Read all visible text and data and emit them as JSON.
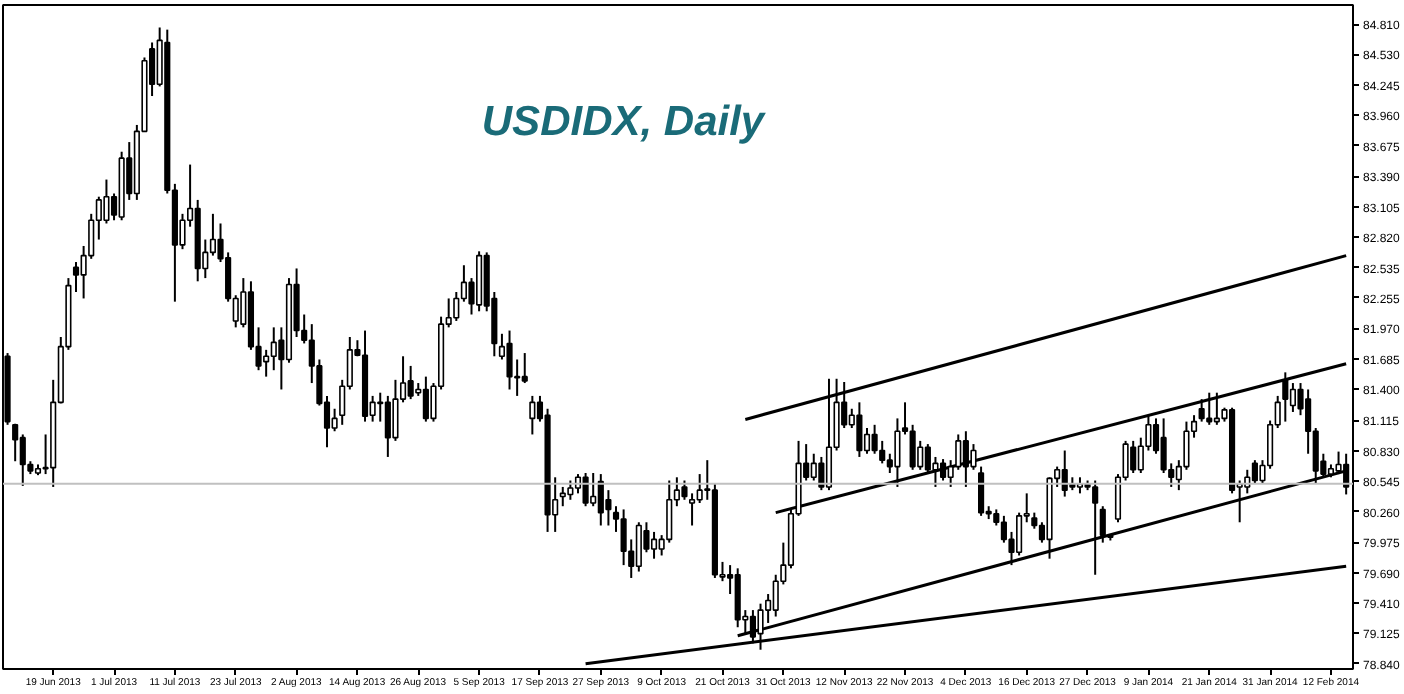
{
  "chart_data": {
    "type": "candlestick",
    "title": "USDIDX, Daily",
    "categories": [
      null,
      null,
      null,
      null,
      null,
      null,
      "19 Jun 2013",
      null,
      null,
      null,
      null,
      null,
      null,
      null,
      "1 Jul 2013",
      null,
      null,
      null,
      null,
      null,
      null,
      null,
      "11 Jul 2013",
      null,
      null,
      null,
      null,
      null,
      null,
      null,
      "23 Jul 2013",
      null,
      null,
      null,
      null,
      null,
      null,
      null,
      "2 Aug 2013",
      null,
      null,
      null,
      null,
      null,
      null,
      null,
      "14 Aug 2013",
      null,
      null,
      null,
      null,
      null,
      null,
      null,
      "26 Aug 2013",
      null,
      null,
      null,
      null,
      null,
      null,
      null,
      "5 Sep 2013",
      null,
      null,
      null,
      null,
      null,
      null,
      null,
      "17 Sep 2013",
      null,
      null,
      null,
      null,
      null,
      null,
      null,
      "27 Sep 2013",
      null,
      null,
      null,
      null,
      null,
      null,
      null,
      "9 Oct 2013",
      null,
      null,
      null,
      null,
      null,
      null,
      null,
      "21 Oct 2013",
      null,
      null,
      null,
      null,
      null,
      null,
      null,
      "31 Oct 2013",
      null,
      null,
      null,
      null,
      null,
      null,
      null,
      "12 Nov 2013",
      null,
      null,
      null,
      null,
      null,
      null,
      null,
      "22 Nov 2013",
      null,
      null,
      null,
      null,
      null,
      null,
      null,
      "4 Dec 2013",
      null,
      null,
      null,
      null,
      null,
      null,
      null,
      "16 Dec 2013",
      null,
      null,
      null,
      null,
      null,
      null,
      null,
      "27 Dec 2013",
      null,
      null,
      null,
      null,
      null,
      null,
      null,
      "9 Jan 2014",
      null,
      null,
      null,
      null,
      null,
      null,
      null,
      "21 Jan 2014",
      null,
      null,
      null,
      null,
      null,
      null,
      null,
      "31 Jan 2014",
      null,
      null,
      null,
      null,
      null,
      null,
      null,
      "12 Feb 2014",
      null,
      null
    ],
    "ohlc": [
      [
        81.71,
        81.74,
        81.07,
        81.1
      ],
      [
        81.07,
        81.08,
        80.73,
        80.93
      ],
      [
        80.95,
        80.98,
        80.5,
        80.7
      ],
      [
        80.7,
        80.73,
        80.61,
        80.64
      ],
      [
        80.62,
        80.7,
        80.6,
        80.66
      ],
      [
        80.66,
        80.98,
        80.61,
        80.67
      ],
      [
        80.67,
        81.49,
        80.49,
        81.28
      ],
      [
        81.28,
        81.89,
        81.27,
        81.8
      ],
      [
        81.8,
        82.44,
        81.77,
        82.37
      ],
      [
        82.54,
        82.59,
        82.31,
        82.47
      ],
      [
        82.47,
        82.74,
        82.25,
        82.65
      ],
      [
        82.65,
        83.04,
        82.62,
        82.98
      ],
      [
        82.98,
        83.2,
        82.8,
        83.17
      ],
      [
        82.98,
        83.36,
        82.95,
        83.2
      ],
      [
        83.2,
        83.23,
        82.98,
        83.03
      ],
      [
        83.01,
        83.62,
        82.98,
        83.56
      ],
      [
        83.56,
        83.71,
        83.17,
        83.23
      ],
      [
        83.23,
        83.87,
        83.17,
        83.81
      ],
      [
        83.81,
        84.5,
        83.81,
        84.47
      ],
      [
        84.58,
        84.64,
        84.14,
        84.25
      ],
      [
        84.25,
        84.78,
        84.23,
        84.66
      ],
      [
        84.64,
        84.76,
        83.23,
        83.26
      ],
      [
        83.26,
        83.32,
        82.22,
        82.75
      ],
      [
        82.75,
        83.04,
        82.71,
        82.98
      ],
      [
        82.98,
        83.5,
        82.92,
        83.09
      ],
      [
        83.09,
        83.17,
        82.41,
        82.53
      ],
      [
        82.53,
        82.8,
        82.44,
        82.68
      ],
      [
        82.68,
        83.04,
        82.65,
        82.8
      ],
      [
        82.8,
        82.95,
        82.59,
        82.62
      ],
      [
        82.63,
        82.68,
        82.22,
        82.25
      ],
      [
        82.04,
        82.28,
        81.98,
        82.25
      ],
      [
        82.01,
        82.44,
        81.98,
        82.31
      ],
      [
        82.31,
        82.41,
        81.77,
        81.8
      ],
      [
        81.8,
        81.98,
        81.58,
        81.62
      ],
      [
        81.66,
        81.77,
        81.52,
        81.71
      ],
      [
        81.71,
        81.98,
        81.58,
        81.84
      ],
      [
        81.86,
        81.98,
        81.4,
        81.68
      ],
      [
        81.68,
        82.44,
        81.65,
        82.38
      ],
      [
        82.38,
        82.53,
        81.89,
        81.95
      ],
      [
        81.95,
        82.1,
        81.83,
        81.86
      ],
      [
        81.86,
        82.01,
        81.46,
        81.62
      ],
      [
        81.62,
        81.68,
        81.25,
        81.27
      ],
      [
        81.28,
        81.34,
        80.86,
        81.04
      ],
      [
        81.04,
        81.22,
        81.01,
        81.13
      ],
      [
        81.16,
        81.49,
        81.07,
        81.43
      ],
      [
        81.43,
        81.89,
        81.4,
        81.77
      ],
      [
        81.77,
        81.86,
        81.71,
        81.72
      ],
      [
        81.72,
        81.95,
        81.1,
        81.15
      ],
      [
        81.16,
        81.34,
        81.1,
        81.28
      ],
      [
        81.27,
        81.37,
        81.1,
        81.28
      ],
      [
        81.28,
        81.34,
        80.77,
        80.95
      ],
      [
        80.95,
        81.49,
        80.92,
        81.31
      ],
      [
        81.31,
        81.71,
        81.28,
        81.46
      ],
      [
        81.48,
        81.62,
        81.31,
        81.34
      ],
      [
        81.37,
        81.46,
        81.34,
        81.4
      ],
      [
        81.4,
        81.52,
        81.1,
        81.13
      ],
      [
        81.13,
        81.46,
        81.1,
        81.43
      ],
      [
        81.43,
        82.08,
        81.4,
        82.01
      ],
      [
        82.01,
        82.25,
        81.98,
        82.07
      ],
      [
        82.07,
        82.31,
        82.04,
        82.25
      ],
      [
        82.25,
        82.56,
        82.22,
        82.4
      ],
      [
        82.4,
        82.44,
        82.1,
        82.2
      ],
      [
        82.19,
        82.69,
        82.13,
        82.65
      ],
      [
        82.65,
        82.68,
        82.13,
        82.18
      ],
      [
        82.25,
        82.31,
        81.71,
        81.83
      ],
      [
        81.71,
        81.92,
        81.68,
        81.8
      ],
      [
        81.83,
        81.95,
        81.4,
        81.52
      ],
      [
        81.51,
        81.68,
        81.34,
        81.52
      ],
      [
        81.52,
        81.74,
        81.46,
        81.48
      ],
      [
        81.13,
        81.34,
        80.98,
        81.28
      ],
      [
        81.28,
        81.34,
        81.1,
        81.13
      ],
      [
        81.16,
        81.22,
        80.07,
        80.23
      ],
      [
        80.23,
        80.58,
        80.07,
        80.37
      ],
      [
        80.4,
        80.49,
        80.31,
        80.43
      ],
      [
        80.42,
        80.55,
        80.37,
        80.48
      ],
      [
        80.48,
        80.61,
        80.43,
        80.58
      ],
      [
        80.58,
        80.62,
        80.31,
        80.34
      ],
      [
        80.34,
        80.62,
        80.31,
        80.4
      ],
      [
        80.54,
        80.61,
        80.13,
        80.25
      ],
      [
        80.37,
        80.46,
        80.13,
        80.28
      ],
      [
        80.25,
        80.31,
        80.07,
        80.19
      ],
      [
        80.19,
        80.28,
        79.76,
        79.89
      ],
      [
        79.89,
        80.0,
        79.64,
        79.75
      ],
      [
        79.75,
        80.16,
        79.7,
        80.13
      ],
      [
        80.08,
        80.16,
        79.88,
        79.91
      ],
      [
        79.91,
        80.07,
        79.82,
        80.0
      ],
      [
        79.91,
        80.04,
        79.85,
        80.0
      ],
      [
        80.0,
        80.55,
        79.97,
        80.37
      ],
      [
        80.37,
        80.58,
        80.31,
        80.46
      ],
      [
        80.49,
        80.55,
        80.37,
        80.4
      ],
      [
        80.34,
        80.43,
        80.13,
        80.37
      ],
      [
        80.37,
        80.61,
        80.34,
        80.46
      ],
      [
        80.46,
        80.74,
        80.37,
        80.47
      ],
      [
        80.46,
        80.52,
        79.64,
        79.67
      ],
      [
        79.65,
        79.79,
        79.61,
        79.67
      ],
      [
        79.67,
        79.76,
        79.49,
        79.64
      ],
      [
        79.67,
        79.73,
        79.18,
        79.25
      ],
      [
        79.25,
        79.34,
        79.12,
        79.28
      ],
      [
        79.28,
        79.34,
        79.03,
        79.09
      ],
      [
        79.12,
        79.4,
        78.97,
        79.34
      ],
      [
        79.34,
        79.49,
        79.22,
        79.43
      ],
      [
        79.34,
        79.67,
        79.28,
        79.61
      ],
      [
        79.61,
        79.97,
        79.58,
        79.76
      ],
      [
        79.76,
        80.28,
        79.73,
        80.24
      ],
      [
        80.24,
        80.92,
        80.22,
        80.71
      ],
      [
        80.71,
        80.89,
        80.55,
        80.58
      ],
      [
        80.58,
        80.8,
        80.55,
        80.71
      ],
      [
        80.71,
        80.77,
        80.46,
        80.49
      ],
      [
        80.49,
        81.5,
        80.46,
        80.86
      ],
      [
        80.86,
        81.5,
        80.83,
        81.28
      ],
      [
        81.28,
        81.47,
        81.04,
        81.07
      ],
      [
        81.07,
        81.22,
        81.04,
        81.16
      ],
      [
        81.16,
        81.28,
        80.77,
        80.83
      ],
      [
        80.83,
        81.04,
        80.8,
        80.98
      ],
      [
        80.98,
        81.07,
        80.8,
        80.83
      ],
      [
        80.83,
        80.92,
        80.71,
        80.74
      ],
      [
        80.74,
        80.8,
        80.62,
        80.68
      ],
      [
        80.68,
        81.13,
        80.49,
        81.01
      ],
      [
        81.04,
        81.28,
        80.98,
        81.01
      ],
      [
        81.01,
        81.07,
        80.65,
        80.68
      ],
      [
        80.68,
        80.92,
        80.65,
        80.86
      ],
      [
        80.86,
        80.89,
        80.62,
        80.65
      ],
      [
        80.65,
        80.77,
        80.49,
        80.71
      ],
      [
        80.71,
        80.75,
        80.55,
        80.58
      ],
      [
        80.58,
        80.74,
        80.49,
        80.68
      ],
      [
        80.68,
        80.98,
        80.65,
        80.92
      ],
      [
        80.92,
        81.01,
        80.49,
        80.68
      ],
      [
        80.68,
        80.89,
        80.65,
        80.83
      ],
      [
        80.62,
        80.68,
        80.22,
        80.25
      ],
      [
        80.26,
        80.31,
        80.19,
        80.24
      ],
      [
        80.24,
        80.28,
        80.13,
        80.16
      ],
      [
        80.16,
        80.22,
        79.97,
        80.0
      ],
      [
        80.0,
        80.07,
        79.76,
        79.88
      ],
      [
        79.88,
        80.25,
        79.85,
        80.22
      ],
      [
        80.22,
        80.43,
        80.16,
        80.24
      ],
      [
        80.2,
        80.25,
        80.1,
        80.13
      ],
      [
        80.13,
        80.16,
        79.97,
        80.0
      ],
      [
        80.0,
        80.58,
        79.82,
        80.57
      ],
      [
        80.57,
        80.68,
        80.49,
        80.65
      ],
      [
        80.65,
        80.83,
        80.4,
        80.46
      ],
      [
        80.52,
        80.58,
        80.46,
        80.49
      ],
      [
        80.49,
        80.58,
        80.43,
        80.52
      ],
      [
        80.52,
        80.55,
        80.46,
        80.49
      ],
      [
        80.49,
        80.55,
        79.67,
        80.34
      ],
      [
        80.28,
        80.31,
        79.97,
        80.04
      ],
      [
        80.04,
        80.05,
        79.99,
        80.02
      ],
      [
        80.19,
        80.61,
        80.16,
        80.58
      ],
      [
        80.58,
        80.92,
        80.55,
        80.89
      ],
      [
        80.86,
        80.92,
        80.62,
        80.65
      ],
      [
        80.65,
        80.95,
        80.62,
        80.87
      ],
      [
        80.87,
        81.16,
        80.83,
        81.07
      ],
      [
        81.07,
        81.13,
        80.8,
        80.83
      ],
      [
        80.95,
        81.13,
        80.62,
        80.65
      ],
      [
        80.65,
        80.71,
        80.49,
        80.58
      ],
      [
        80.56,
        80.74,
        80.46,
        80.68
      ],
      [
        80.68,
        81.1,
        80.65,
        81.01
      ],
      [
        81.01,
        81.16,
        80.95,
        81.1
      ],
      [
        81.22,
        81.31,
        81.1,
        81.13
      ],
      [
        81.13,
        81.37,
        81.07,
        81.1
      ],
      [
        81.1,
        81.37,
        81.07,
        81.13
      ],
      [
        81.13,
        81.23,
        81.1,
        81.21
      ],
      [
        81.21,
        81.23,
        80.43,
        80.46
      ],
      [
        80.49,
        80.55,
        80.16,
        80.52
      ],
      [
        80.49,
        80.65,
        80.43,
        80.58
      ],
      [
        80.71,
        80.74,
        80.52,
        80.55
      ],
      [
        80.55,
        80.74,
        80.52,
        80.69
      ],
      [
        80.69,
        81.11,
        80.66,
        81.07
      ],
      [
        81.07,
        81.34,
        81.04,
        81.28
      ],
      [
        81.49,
        81.56,
        81.1,
        81.31
      ],
      [
        81.25,
        81.46,
        81.19,
        81.4
      ],
      [
        81.4,
        81.46,
        81.16,
        81.22
      ],
      [
        81.31,
        81.4,
        80.8,
        81.01
      ],
      [
        81.01,
        81.04,
        80.52,
        80.64
      ],
      [
        80.73,
        80.8,
        80.58,
        80.61
      ],
      [
        80.61,
        80.7,
        80.58,
        80.66
      ],
      [
        80.64,
        80.82,
        80.61,
        80.7
      ],
      [
        80.7,
        80.8,
        80.42,
        80.49
      ]
    ],
    "series": [
      {
        "type": "line",
        "color": "#000000",
        "values": [
          null,
          null,
          null,
          null,
          null,
          null,
          null,
          null,
          null,
          null,
          null,
          null,
          null,
          null,
          null,
          null,
          null,
          null,
          null,
          null,
          null,
          null,
          null,
          null,
          null,
          null,
          null,
          null,
          null,
          null,
          null,
          null,
          null,
          null,
          null,
          null,
          null,
          null,
          null,
          null,
          null,
          null,
          null,
          null,
          null,
          null,
          null,
          null,
          null,
          null,
          null,
          null,
          null,
          null,
          null,
          null,
          null,
          null,
          null,
          null,
          null,
          null,
          null,
          null,
          null,
          null,
          null,
          null,
          null,
          null,
          null,
          null,
          null,
          null,
          null,
          null,
          null,
          null,
          null,
          null,
          null,
          null,
          null,
          null,
          null,
          null,
          null,
          null,
          null,
          null,
          null,
          null,
          null,
          null,
          null,
          null,
          null,
          81.12,
          null,
          null,
          null,
          null,
          null,
          null,
          null,
          null,
          null,
          null,
          null,
          null,
          null,
          null,
          null,
          null,
          null,
          null,
          null,
          null,
          null,
          null,
          null,
          null,
          null,
          null,
          null,
          null,
          null,
          null,
          null,
          null,
          null,
          null,
          null,
          null,
          null,
          null,
          null,
          null,
          null,
          null,
          null,
          null,
          null,
          null,
          null,
          null,
          null,
          null,
          null,
          null,
          null,
          null,
          null,
          null,
          null,
          null,
          null,
          null,
          null,
          null,
          null,
          null,
          null,
          null,
          null,
          null,
          null,
          null,
          null,
          null,
          null,
          null,
          null,
          null,
          null,
          null,
          82.65
        ]
      },
      {
        "type": "line",
        "color": "#000000",
        "values": [
          null,
          null,
          null,
          null,
          null,
          null,
          null,
          null,
          null,
          null,
          null,
          null,
          null,
          null,
          null,
          null,
          null,
          null,
          null,
          null,
          null,
          null,
          null,
          null,
          null,
          null,
          null,
          null,
          null,
          null,
          null,
          null,
          null,
          null,
          null,
          null,
          null,
          null,
          null,
          null,
          null,
          null,
          null,
          null,
          null,
          null,
          null,
          null,
          null,
          null,
          null,
          null,
          null,
          null,
          null,
          null,
          null,
          null,
          null,
          null,
          null,
          null,
          null,
          null,
          null,
          null,
          null,
          null,
          null,
          null,
          null,
          null,
          null,
          null,
          null,
          null,
          null,
          null,
          null,
          null,
          null,
          null,
          null,
          null,
          null,
          null,
          null,
          null,
          null,
          null,
          null,
          null,
          null,
          null,
          null,
          null,
          null,
          null,
          null,
          null,
          null,
          80.25,
          null,
          null,
          null,
          null,
          null,
          null,
          null,
          null,
          null,
          null,
          null,
          null,
          null,
          null,
          null,
          null,
          null,
          null,
          null,
          null,
          null,
          null,
          null,
          null,
          null,
          null,
          null,
          null,
          null,
          null,
          null,
          null,
          null,
          null,
          null,
          null,
          null,
          null,
          null,
          null,
          null,
          null,
          null,
          null,
          null,
          null,
          null,
          null,
          null,
          null,
          null,
          null,
          null,
          null,
          null,
          null,
          null,
          null,
          null,
          null,
          null,
          null,
          null,
          null,
          null,
          null,
          null,
          null,
          null,
          null,
          null,
          null,
          null,
          null,
          81.64
        ]
      },
      {
        "type": "line",
        "color": "#000000",
        "values": [
          null,
          null,
          null,
          null,
          null,
          null,
          null,
          null,
          null,
          null,
          null,
          null,
          null,
          null,
          null,
          null,
          null,
          null,
          null,
          null,
          null,
          null,
          null,
          null,
          null,
          null,
          null,
          null,
          null,
          null,
          null,
          null,
          null,
          null,
          null,
          null,
          null,
          null,
          null,
          null,
          null,
          null,
          null,
          null,
          null,
          null,
          null,
          null,
          null,
          null,
          null,
          null,
          null,
          null,
          null,
          null,
          null,
          null,
          null,
          null,
          null,
          null,
          null,
          null,
          null,
          null,
          null,
          null,
          null,
          null,
          null,
          null,
          null,
          null,
          null,
          null,
          null,
          null,
          null,
          null,
          null,
          null,
          null,
          null,
          null,
          null,
          null,
          null,
          null,
          null,
          null,
          null,
          null,
          null,
          null,
          null,
          79.1,
          null,
          null,
          null,
          null,
          null,
          null,
          null,
          null,
          null,
          null,
          null,
          null,
          null,
          null,
          null,
          null,
          null,
          null,
          null,
          null,
          null,
          null,
          null,
          null,
          null,
          null,
          null,
          null,
          null,
          null,
          null,
          null,
          null,
          null,
          null,
          null,
          null,
          null,
          null,
          null,
          null,
          null,
          null,
          null,
          null,
          null,
          null,
          null,
          null,
          null,
          null,
          null,
          null,
          null,
          null,
          null,
          null,
          null,
          null,
          null,
          null,
          null,
          null,
          null,
          null,
          null,
          null,
          null,
          null,
          null,
          null,
          null,
          null,
          null,
          null,
          null,
          null,
          null,
          null,
          80.64
        ]
      },
      {
        "type": "line",
        "color": "#000000",
        "values": [
          null,
          null,
          null,
          null,
          null,
          null,
          null,
          null,
          null,
          null,
          null,
          null,
          null,
          null,
          null,
          null,
          null,
          null,
          null,
          null,
          null,
          null,
          null,
          null,
          null,
          null,
          null,
          null,
          null,
          null,
          null,
          null,
          null,
          null,
          null,
          null,
          null,
          null,
          null,
          null,
          null,
          null,
          null,
          null,
          null,
          null,
          null,
          null,
          null,
          null,
          null,
          null,
          null,
          null,
          null,
          null,
          null,
          null,
          null,
          null,
          null,
          null,
          null,
          null,
          null,
          null,
          null,
          null,
          null,
          null,
          null,
          null,
          null,
          null,
          null,
          null,
          78.84,
          null,
          null,
          null,
          null,
          null,
          null,
          null,
          null,
          null,
          null,
          null,
          null,
          null,
          null,
          null,
          null,
          null,
          null,
          null,
          null,
          null,
          null,
          null,
          null,
          null,
          null,
          null,
          null,
          null,
          null,
          null,
          null,
          null,
          null,
          null,
          null,
          null,
          null,
          null,
          null,
          null,
          null,
          null,
          null,
          null,
          null,
          null,
          null,
          null,
          null,
          null,
          null,
          null,
          null,
          null,
          null,
          null,
          null,
          null,
          null,
          null,
          null,
          null,
          null,
          null,
          null,
          null,
          null,
          null,
          null,
          null,
          null,
          null,
          null,
          null,
          null,
          null,
          null,
          null,
          null,
          null,
          null,
          null,
          null,
          null,
          null,
          null,
          null,
          null,
          null,
          null,
          null,
          null,
          null,
          null,
          null,
          null,
          null,
          null,
          79.75
        ]
      }
    ],
    "ref_lines": [
      {
        "axis": "y",
        "value": 80.52,
        "color": "#c0c0c0"
      }
    ],
    "ylim": [
      78.79,
      84.99
    ],
    "yticks": [
      {
        "value": 84.81,
        "label": "84.810"
      },
      {
        "value": 84.53,
        "label": "84.530"
      },
      {
        "value": 84.245,
        "label": "84.245"
      },
      {
        "value": 83.96,
        "label": "83.960"
      },
      {
        "value": 83.675,
        "label": "83.675"
      },
      {
        "value": 83.39,
        "label": "83.390"
      },
      {
        "value": 83.105,
        "label": "83.105"
      },
      {
        "value": 82.82,
        "label": "82.820"
      },
      {
        "value": 82.535,
        "label": "82.535"
      },
      {
        "value": 82.255,
        "label": "82.255"
      },
      {
        "value": 81.97,
        "label": "81.970"
      },
      {
        "value": 81.685,
        "label": "81.685"
      },
      {
        "value": 81.4,
        "label": "81.400"
      },
      {
        "value": 81.115,
        "label": "81.115"
      },
      {
        "value": 80.83,
        "label": "80.830"
      },
      {
        "value": 80.545,
        "label": "80.545"
      },
      {
        "value": 80.26,
        "label": "80.260"
      },
      {
        "value": 79.975,
        "label": "79.975"
      },
      {
        "value": 79.69,
        "label": "79.690"
      },
      {
        "value": 79.41,
        "label": "79.410"
      },
      {
        "value": 79.125,
        "label": "79.125"
      },
      {
        "value": 78.84,
        "label": "78.840"
      }
    ]
  }
}
